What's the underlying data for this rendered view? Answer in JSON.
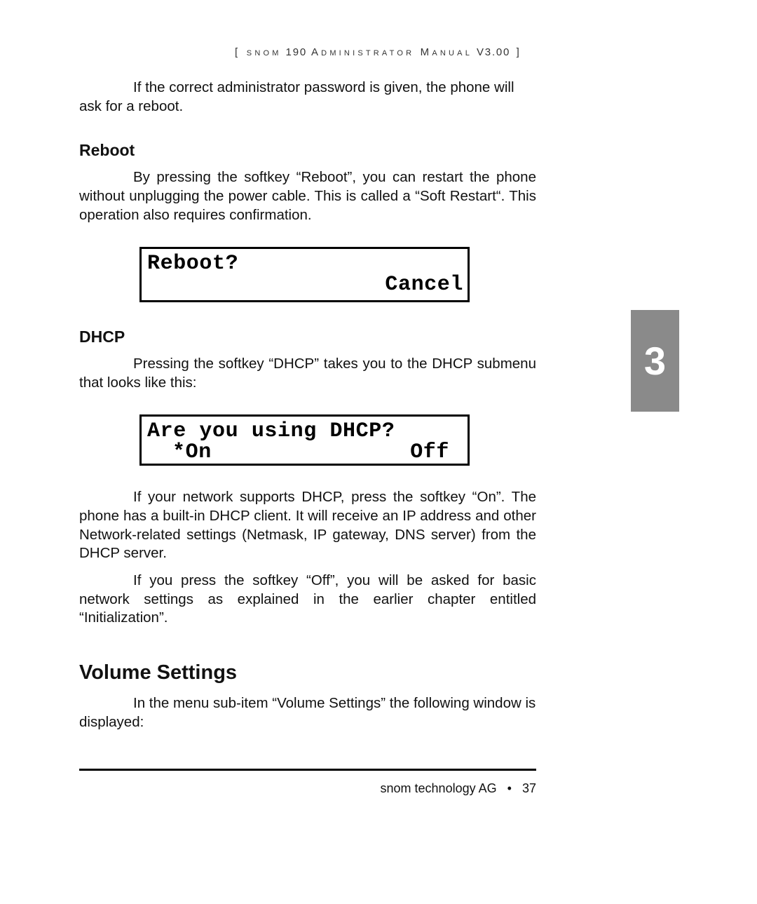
{
  "header": {
    "left": "[ ",
    "brand": "snom",
    "model": " 190 ",
    "title_a": "Administrator ",
    "title_b": "Manual",
    "version": " V3.00",
    "right": " ]"
  },
  "tab": {
    "number": "3"
  },
  "p_intro": "If the correct administrator password is given, the phone will ask for a reboot.",
  "reboot": {
    "heading": "Reboot",
    "para": "By pressing the softkey “Reboot”, you can restart the phone without unplugging the power cable. This is called a “Soft Restart“. This operation also requires confirmation.",
    "lcd": {
      "line1": "Reboot?",
      "right": "Cancel"
    }
  },
  "dhcp": {
    "heading": "DHCP",
    "para1": "Pressing the softkey “DHCP” takes you to the DHCP submenu that looks like this:",
    "lcd": {
      "line1": "Are you using DHCP?",
      "opt_on": "*On",
      "opt_off": "Off"
    },
    "para2": "If your network supports DHCP, press the softkey “On”. The phone has a built-in DHCP client. It will receive an IP address and other Network-related settings (Netmask, IP gateway, DNS server) from the DHCP server.",
    "para3": "If you press the softkey “Off”, you will be asked for basic network settings as explained in the earlier chapter entitled “Initialization”."
  },
  "volume": {
    "heading": "Volume Settings",
    "para": "In the menu sub-item “Volume Settings” the following window is displayed:"
  },
  "footer": {
    "company": "snom technology AG",
    "bullet": "•",
    "page": "37"
  },
  "colors": {
    "tab_bg": "#8a8a8a",
    "text": "#111111",
    "rule": "#000000"
  }
}
